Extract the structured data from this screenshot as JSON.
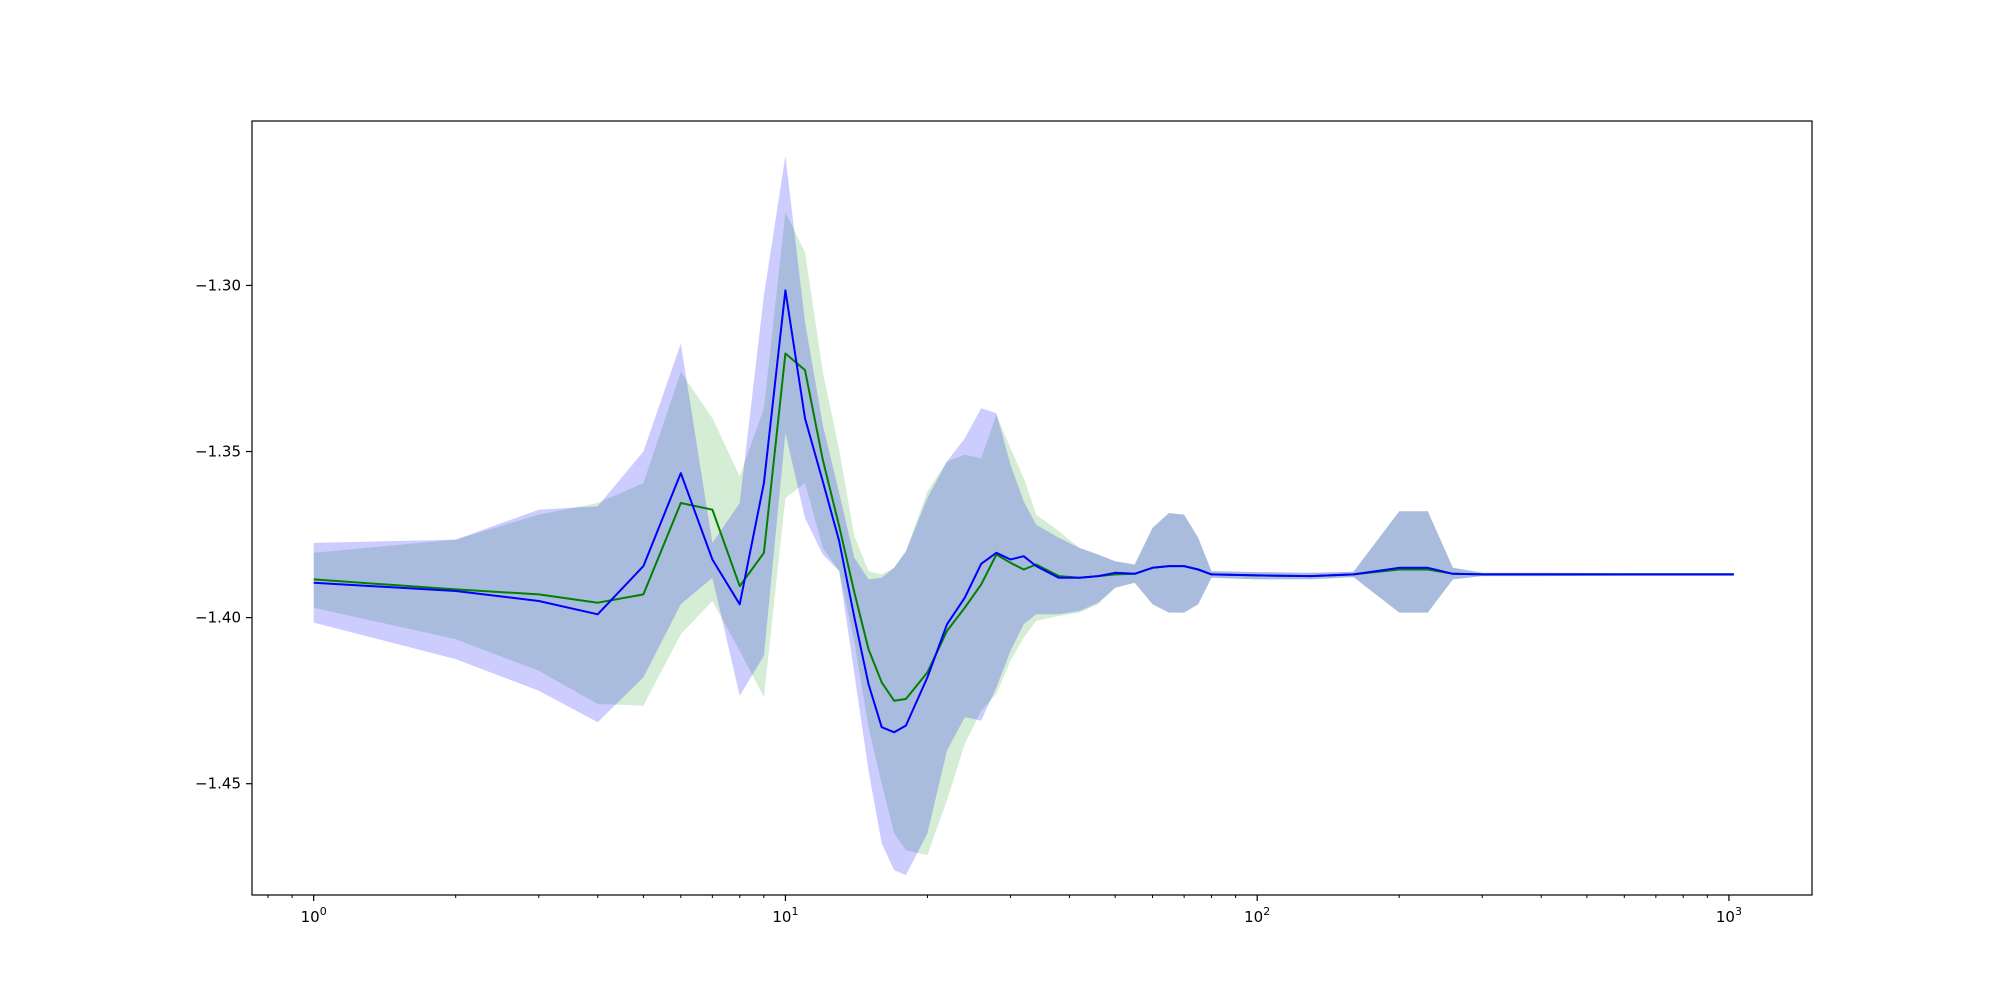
{
  "chart_data": {
    "type": "line",
    "title": "",
    "xlabel": "",
    "ylabel": "",
    "xscale": "log",
    "xlim": [
      0.74,
      1500
    ],
    "ylim": [
      -1.4835,
      -1.2505
    ],
    "grid": false,
    "legend": "none",
    "x_ticks": [
      {
        "value": 1,
        "base": "10",
        "exp": "0"
      },
      {
        "value": 10,
        "base": "10",
        "exp": "1"
      },
      {
        "value": 100,
        "base": "10",
        "exp": "2"
      },
      {
        "value": 1000,
        "base": "10",
        "exp": "3"
      }
    ],
    "y_ticks": [
      {
        "value": -1.3,
        "label": "−1.30"
      },
      {
        "value": -1.35,
        "label": "−1.35"
      },
      {
        "value": -1.4,
        "label": "−1.40"
      },
      {
        "value": -1.45,
        "label": "−1.45"
      }
    ],
    "series": [
      {
        "color": "#008000",
        "band_color": "#2ca02c",
        "points": [
          [
            1,
            -1.3885,
            -1.3805,
            -1.397
          ],
          [
            2,
            -1.3915,
            -1.3765,
            -1.4065
          ],
          [
            3,
            -1.393,
            -1.369,
            -1.416
          ],
          [
            4,
            -1.3955,
            -1.3655,
            -1.426
          ],
          [
            5,
            -1.393,
            -1.3595,
            -1.4265
          ],
          [
            6,
            -1.3655,
            -1.326,
            -1.405
          ],
          [
            7,
            -1.3675,
            -1.34,
            -1.395
          ],
          [
            8,
            -1.3905,
            -1.3575,
            -1.41
          ],
          [
            9,
            -1.3805,
            -1.337,
            -1.424
          ],
          [
            10,
            -1.3205,
            -1.278,
            -1.364
          ],
          [
            11,
            -1.3255,
            -1.29,
            -1.3595
          ],
          [
            12,
            -1.3525,
            -1.326,
            -1.379
          ],
          [
            13,
            -1.3725,
            -1.3495,
            -1.386
          ],
          [
            14,
            -1.3925,
            -1.3755,
            -1.4075
          ],
          [
            15,
            -1.4095,
            -1.386,
            -1.433
          ],
          [
            16,
            -1.4195,
            -1.387,
            -1.45
          ],
          [
            17,
            -1.425,
            -1.385,
            -1.465
          ],
          [
            18,
            -1.4245,
            -1.38,
            -1.47
          ],
          [
            20,
            -1.4165,
            -1.362,
            -1.4715
          ],
          [
            22,
            -1.404,
            -1.353,
            -1.455
          ],
          [
            24,
            -1.397,
            -1.351,
            -1.438
          ],
          [
            26,
            -1.39,
            -1.352,
            -1.428
          ],
          [
            28,
            -1.381,
            -1.339,
            -1.423
          ],
          [
            30,
            -1.3835,
            -1.349,
            -1.413
          ],
          [
            32,
            -1.3855,
            -1.358,
            -1.406
          ],
          [
            34,
            -1.384,
            -1.369,
            -1.401
          ],
          [
            38,
            -1.3875,
            -1.374,
            -1.3995
          ],
          [
            42,
            -1.388,
            -1.379,
            -1.3985
          ],
          [
            46,
            -1.3875,
            -1.381,
            -1.396
          ],
          [
            50,
            -1.387,
            -1.383,
            -1.391
          ],
          [
            55,
            -1.3868,
            -1.384,
            -1.3895
          ],
          [
            60,
            -1.385,
            -1.373,
            -1.396
          ],
          [
            65,
            -1.3845,
            -1.3685,
            -1.3985
          ],
          [
            70,
            -1.3845,
            -1.369,
            -1.3985
          ],
          [
            75,
            -1.3855,
            -1.376,
            -1.396
          ],
          [
            80,
            -1.387,
            -1.386,
            -1.388
          ],
          [
            100,
            -1.3873,
            -1.3863,
            -1.3885
          ],
          [
            130,
            -1.3875,
            -1.3865,
            -1.3885
          ],
          [
            160,
            -1.387,
            -1.3862,
            -1.3878
          ],
          [
            200,
            -1.3855,
            -1.368,
            -1.3985
          ],
          [
            230,
            -1.3855,
            -1.368,
            -1.3985
          ],
          [
            260,
            -1.3868,
            -1.385,
            -1.3885
          ],
          [
            300,
            -1.387,
            -1.3865,
            -1.3875
          ],
          [
            400,
            -1.387,
            -1.3865,
            -1.3875
          ],
          [
            600,
            -1.387,
            -1.3866,
            -1.3874
          ],
          [
            1024,
            -1.387,
            -1.3866,
            -1.3874
          ]
        ]
      },
      {
        "color": "#0000ff",
        "band_color": "#0000ff",
        "points": [
          [
            1,
            -1.3895,
            -1.3775,
            -1.4015
          ],
          [
            2,
            -1.392,
            -1.3765,
            -1.4125
          ],
          [
            3,
            -1.395,
            -1.3675,
            -1.422
          ],
          [
            4,
            -1.399,
            -1.3665,
            -1.4315
          ],
          [
            5,
            -1.3845,
            -1.35,
            -1.418
          ],
          [
            6,
            -1.3565,
            -1.3175,
            -1.396
          ],
          [
            7,
            -1.3825,
            -1.3775,
            -1.388
          ],
          [
            8,
            -1.396,
            -1.3655,
            -1.4235
          ],
          [
            9,
            -1.3595,
            -1.303,
            -1.4115
          ],
          [
            10,
            -1.3015,
            -1.261,
            -1.3445
          ],
          [
            11,
            -1.34,
            -1.311,
            -1.37
          ],
          [
            12,
            -1.359,
            -1.342,
            -1.381
          ],
          [
            13,
            -1.377,
            -1.3625,
            -1.386
          ],
          [
            14,
            -1.4,
            -1.382,
            -1.417
          ],
          [
            15,
            -1.42,
            -1.3885,
            -1.446
          ],
          [
            16,
            -1.433,
            -1.388,
            -1.468
          ],
          [
            17,
            -1.4345,
            -1.385,
            -1.476
          ],
          [
            18,
            -1.4325,
            -1.38,
            -1.4775
          ],
          [
            20,
            -1.418,
            -1.364,
            -1.465
          ],
          [
            22,
            -1.402,
            -1.353,
            -1.44
          ],
          [
            24,
            -1.394,
            -1.346,
            -1.43
          ],
          [
            26,
            -1.3838,
            -1.337,
            -1.431
          ],
          [
            28,
            -1.3805,
            -1.3385,
            -1.421
          ],
          [
            30,
            -1.3825,
            -1.354,
            -1.41
          ],
          [
            32,
            -1.3815,
            -1.365,
            -1.402
          ],
          [
            34,
            -1.3845,
            -1.372,
            -1.399
          ],
          [
            38,
            -1.388,
            -1.376,
            -1.399
          ],
          [
            42,
            -1.388,
            -1.379,
            -1.398
          ],
          [
            46,
            -1.3875,
            -1.381,
            -1.3955
          ],
          [
            50,
            -1.3865,
            -1.383,
            -1.391
          ],
          [
            55,
            -1.3868,
            -1.384,
            -1.3895
          ],
          [
            60,
            -1.385,
            -1.373,
            -1.396
          ],
          [
            65,
            -1.3845,
            -1.3685,
            -1.3985
          ],
          [
            70,
            -1.3845,
            -1.369,
            -1.3985
          ],
          [
            75,
            -1.3855,
            -1.376,
            -1.396
          ],
          [
            80,
            -1.387,
            -1.386,
            -1.388
          ],
          [
            100,
            -1.3873,
            -1.3863,
            -1.3885
          ],
          [
            130,
            -1.3875,
            -1.3865,
            -1.3885
          ],
          [
            160,
            -1.387,
            -1.3862,
            -1.3878
          ],
          [
            200,
            -1.385,
            -1.368,
            -1.3985
          ],
          [
            230,
            -1.385,
            -1.368,
            -1.3985
          ],
          [
            260,
            -1.3868,
            -1.385,
            -1.3885
          ],
          [
            300,
            -1.387,
            -1.3865,
            -1.3875
          ],
          [
            400,
            -1.387,
            -1.3865,
            -1.3875
          ],
          [
            600,
            -1.387,
            -1.3866,
            -1.3874
          ],
          [
            1024,
            -1.387,
            -1.3866,
            -1.3874
          ]
        ]
      }
    ]
  }
}
